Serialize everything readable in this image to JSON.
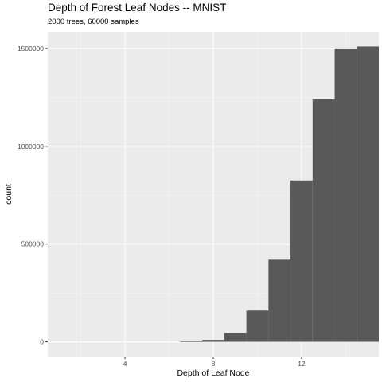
{
  "chart_data": {
    "type": "bar",
    "title": "Depth of Forest Leaf Nodes -- MNIST",
    "subtitle": "2000 trees, 60000 samples",
    "xlabel": "Depth of Leaf Node",
    "ylabel": "count",
    "xlim": [
      0.5,
      15.5
    ],
    "ylim": [
      -75000,
      1585000
    ],
    "x_ticks": [
      4,
      8,
      12
    ],
    "y_ticks": [
      0,
      500000,
      1000000,
      1500000
    ],
    "x_tick_labels": [
      "4",
      "8",
      "12"
    ],
    "y_tick_labels": [
      "0",
      "500000",
      "1000000",
      "1500000"
    ],
    "bin_width": 1,
    "bins": [
      {
        "x": 7,
        "count": 3000
      },
      {
        "x": 8,
        "count": 10000
      },
      {
        "x": 9,
        "count": 45000
      },
      {
        "x": 10,
        "count": 160000
      },
      {
        "x": 11,
        "count": 420000
      },
      {
        "x": 12,
        "count": 825000
      },
      {
        "x": 13,
        "count": 1240000
      },
      {
        "x": 14,
        "count": 1500000
      },
      {
        "x": 15,
        "count": 1510000
      }
    ],
    "grid": true,
    "bar_color": "#595959",
    "panel_color": "#ebebeb"
  }
}
